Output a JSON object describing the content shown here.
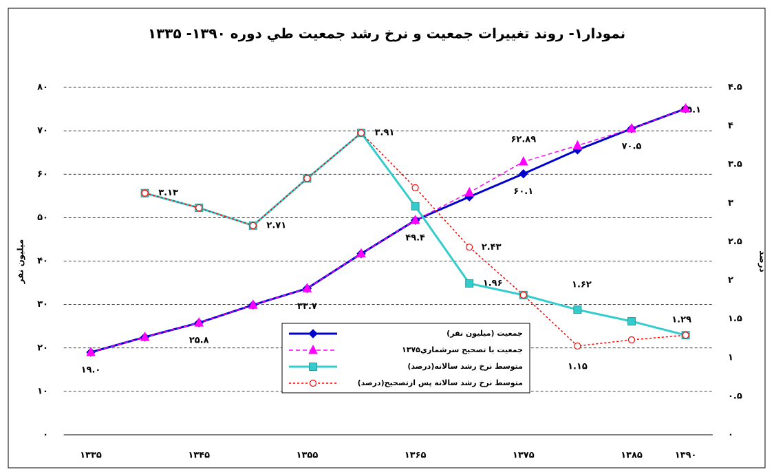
{
  "chart_data": {
    "type": "line",
    "title": "نمودار۱- روند تغییرات جمعیت و نرخ رشد جمعیت طي دوره ۱۳۹۰- ۱۳۳۵",
    "y_label": "میلیون نفر",
    "y2_label": "درصد",
    "categories": [
      "۱۳۳۵",
      null,
      "۱۳۴۵",
      null,
      "۱۳۵۵",
      null,
      "۱۳۶۵",
      null,
      "۱۳۷۵",
      null,
      "۱۳۸۵",
      "۱۳۹۰"
    ],
    "ylim": [
      0,
      80
    ],
    "yticks": [
      {
        "value": 0,
        "label": "۰"
      },
      {
        "value": 10,
        "label": "۱۰"
      },
      {
        "value": 20,
        "label": "۲۰"
      },
      {
        "value": 30,
        "label": "۳۰"
      },
      {
        "value": 40,
        "label": "۴۰"
      },
      {
        "value": 50,
        "label": "۵۰"
      },
      {
        "value": 60,
        "label": "۶۰"
      },
      {
        "value": 70,
        "label": "۷۰"
      },
      {
        "value": 80,
        "label": "۸۰"
      }
    ],
    "y2lim": [
      0,
      4.5
    ],
    "y2ticks": [
      {
        "value": 0,
        "label": "۰"
      },
      {
        "value": 0.5,
        "label": "۰.۵"
      },
      {
        "value": 1,
        "label": "۱"
      },
      {
        "value": 1.5,
        "label": "۱.۵"
      },
      {
        "value": 2,
        "label": "۲"
      },
      {
        "value": 2.5,
        "label": "۲.۵"
      },
      {
        "value": 3,
        "label": "۳"
      },
      {
        "value": 3.5,
        "label": "۳.۵"
      },
      {
        "value": 4,
        "label": "۴"
      },
      {
        "value": 4.5,
        "label": "۴.۵"
      }
    ],
    "grid": true,
    "series": [
      {
        "name": "جمعیت (میلیون نفر)",
        "color": "#0000cc",
        "marker": "diamond",
        "dash": "solid",
        "values": [
          19.0,
          22.5,
          25.8,
          29.9,
          33.7,
          41.7,
          49.4,
          54.8,
          60.1,
          65.6,
          70.5,
          75.1
        ],
        "value_labels": [
          "۱۹.۰",
          null,
          "۲۵.۸",
          null,
          "۳۳.۷",
          null,
          "۴۹.۴",
          null,
          "۶۰.۱",
          null,
          "۷۰.۵",
          "۷۵.۱"
        ]
      },
      {
        "name": "جمعیت با تصحیح  سرشماري۱۳۷۵",
        "color": "#ff00ff",
        "marker": "triangle",
        "dash": "dashed",
        "values": [
          19.0,
          22.5,
          25.8,
          29.9,
          33.7,
          41.7,
          49.4,
          55.8,
          62.89,
          66.6,
          70.5,
          75.1
        ],
        "value_labels": [
          null,
          null,
          null,
          null,
          null,
          null,
          null,
          null,
          "۶۲.۸۹",
          null,
          null,
          null
        ]
      },
      {
        "name": "متوسط نرخ رشد  سالانه(درصد)",
        "color": "#33cccc",
        "marker": "square",
        "dash": "solid",
        "axis": "y2",
        "values": [
          null,
          3.13,
          2.94,
          2.71,
          3.32,
          3.91,
          2.96,
          1.96,
          1.81,
          1.62,
          1.47,
          1.29
        ],
        "value_labels": [
          null,
          "۳.۱۳",
          null,
          "۲.۷۱",
          null,
          "۳.۹۱",
          null,
          "۱.۹۶",
          null,
          "۱.۶۲",
          null,
          "۱.۲۹"
        ]
      },
      {
        "name": "متوسط نرخ رشد سالانه  پس ازتصحیح(درصد)",
        "color": "#ff0000",
        "marker": "circle",
        "dash": "dotted",
        "axis": "y2",
        "values": [
          null,
          3.13,
          2.94,
          2.71,
          3.32,
          3.91,
          3.2,
          2.43,
          1.81,
          1.15,
          1.23,
          1.29
        ],
        "value_labels": [
          null,
          null,
          null,
          null,
          null,
          null,
          null,
          "۲.۴۳",
          null,
          "۱.۱۵",
          null,
          null
        ]
      }
    ]
  }
}
